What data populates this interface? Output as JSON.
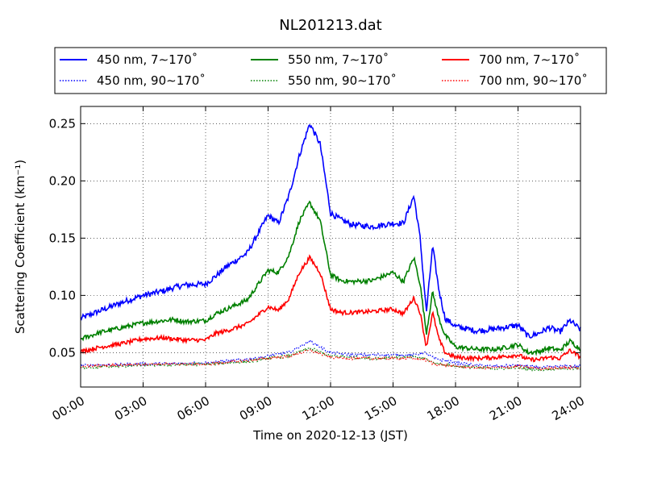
{
  "chart_data": {
    "type": "line",
    "title": "NL201213.dat",
    "xlabel": "Time on 2020-12-13 (JST)",
    "ylabel": "Scattering Coefficient (km⁻¹)",
    "xlim": [
      0,
      24
    ],
    "ylim": [
      0.02,
      0.265
    ],
    "x_ticks": [
      0,
      3,
      6,
      9,
      12,
      15,
      18,
      21,
      24
    ],
    "x_tick_labels": [
      "00:00",
      "03:00",
      "06:00",
      "09:00",
      "12:00",
      "15:00",
      "18:00",
      "21:00",
      "24:00"
    ],
    "y_ticks": [
      0.05,
      0.1,
      0.15,
      0.2,
      0.25
    ],
    "y_tick_labels": [
      "0.05",
      "0.10",
      "0.15",
      "0.20",
      "0.25"
    ],
    "grid": true,
    "legend_position": "top",
    "series": [
      {
        "name": "450 nm, 7∼170˚",
        "color": "#0000ff",
        "style": "solid",
        "noise": 0.0025,
        "x": [
          0,
          1,
          2,
          3,
          4,
          4.5,
          5,
          6,
          6.5,
          7,
          8,
          9,
          9.5,
          10,
          10.5,
          11,
          11.5,
          12,
          12.5,
          13,
          14,
          15,
          15.5,
          16,
          16.3,
          16.6,
          16.9,
          17.2,
          17.5,
          18,
          19,
          20,
          21,
          21.5,
          22,
          22.5,
          23,
          23.5,
          24
        ],
        "y": [
          0.08,
          0.087,
          0.094,
          0.1,
          0.104,
          0.107,
          0.109,
          0.11,
          0.117,
          0.125,
          0.137,
          0.17,
          0.163,
          0.187,
          0.222,
          0.25,
          0.232,
          0.172,
          0.166,
          0.162,
          0.16,
          0.163,
          0.163,
          0.187,
          0.15,
          0.085,
          0.143,
          0.105,
          0.08,
          0.073,
          0.069,
          0.071,
          0.074,
          0.064,
          0.067,
          0.072,
          0.068,
          0.078,
          0.07
        ]
      },
      {
        "name": "550 nm, 7∼170˚",
        "color": "#008000",
        "style": "solid",
        "noise": 0.002,
        "x": [
          0,
          1,
          2,
          3,
          4,
          4.5,
          5,
          6,
          6.5,
          7,
          8,
          9,
          9.5,
          10,
          10.5,
          11,
          11.5,
          12,
          12.5,
          13,
          14,
          15,
          15.5,
          16,
          16.3,
          16.6,
          16.9,
          17.2,
          17.5,
          18,
          19,
          20,
          21,
          21.5,
          22,
          22.5,
          23,
          23.5,
          24
        ],
        "y": [
          0.062,
          0.068,
          0.072,
          0.076,
          0.078,
          0.079,
          0.077,
          0.078,
          0.084,
          0.088,
          0.096,
          0.122,
          0.12,
          0.135,
          0.165,
          0.181,
          0.165,
          0.118,
          0.113,
          0.112,
          0.113,
          0.12,
          0.112,
          0.133,
          0.11,
          0.067,
          0.103,
          0.08,
          0.065,
          0.055,
          0.053,
          0.053,
          0.057,
          0.05,
          0.051,
          0.054,
          0.052,
          0.06,
          0.053
        ]
      },
      {
        "name": "700 nm, 7∼170˚",
        "color": "#ff0000",
        "style": "solid",
        "noise": 0.0018,
        "x": [
          0,
          1,
          2,
          3,
          4,
          4.5,
          5,
          6,
          6.5,
          7,
          8,
          9,
          9.5,
          10,
          10.5,
          11,
          11.5,
          12,
          12.5,
          13,
          14,
          15,
          15.5,
          16,
          16.3,
          16.6,
          16.9,
          17.2,
          17.5,
          18,
          19,
          20,
          21,
          21.5,
          22,
          22.5,
          23,
          23.5,
          24
        ],
        "y": [
          0.051,
          0.055,
          0.058,
          0.062,
          0.063,
          0.062,
          0.061,
          0.061,
          0.067,
          0.069,
          0.075,
          0.09,
          0.087,
          0.097,
          0.12,
          0.133,
          0.12,
          0.088,
          0.085,
          0.085,
          0.086,
          0.088,
          0.084,
          0.098,
          0.085,
          0.055,
          0.085,
          0.062,
          0.05,
          0.046,
          0.045,
          0.046,
          0.048,
          0.044,
          0.044,
          0.046,
          0.045,
          0.052,
          0.046
        ]
      },
      {
        "name": "450 nm, 90∼170˚",
        "color": "#0000ff",
        "style": "dotted",
        "noise": 0.0012,
        "x": [
          0,
          3,
          6,
          8,
          9,
          10,
          11,
          12,
          13,
          14,
          15,
          16,
          16.5,
          17,
          18,
          19,
          20,
          21,
          22,
          23,
          24
        ],
        "y": [
          0.039,
          0.04,
          0.041,
          0.044,
          0.047,
          0.05,
          0.06,
          0.05,
          0.048,
          0.048,
          0.048,
          0.048,
          0.05,
          0.045,
          0.041,
          0.039,
          0.038,
          0.039,
          0.037,
          0.038,
          0.038
        ]
      },
      {
        "name": "550 nm, 90∼170˚",
        "color": "#008000",
        "style": "dotted",
        "noise": 0.0012,
        "x": [
          0,
          3,
          6,
          8,
          9,
          10,
          11,
          12,
          13,
          14,
          15,
          16,
          16.5,
          17,
          18,
          19,
          20,
          21,
          22,
          23,
          24
        ],
        "y": [
          0.037,
          0.039,
          0.04,
          0.042,
          0.045,
          0.047,
          0.054,
          0.047,
          0.046,
          0.045,
          0.046,
          0.046,
          0.045,
          0.041,
          0.038,
          0.037,
          0.036,
          0.037,
          0.035,
          0.036,
          0.036
        ]
      },
      {
        "name": "700 nm, 90∼170˚",
        "color": "#ff0000",
        "style": "dotted",
        "noise": 0.0012,
        "x": [
          0,
          3,
          6,
          8,
          9,
          10,
          11,
          12,
          13,
          14,
          15,
          16,
          16.5,
          17,
          18,
          19,
          20,
          21,
          22,
          23,
          24
        ],
        "y": [
          0.038,
          0.04,
          0.04,
          0.043,
          0.045,
          0.047,
          0.052,
          0.046,
          0.045,
          0.045,
          0.045,
          0.045,
          0.044,
          0.04,
          0.038,
          0.037,
          0.037,
          0.038,
          0.036,
          0.037,
          0.037
        ]
      }
    ]
  }
}
